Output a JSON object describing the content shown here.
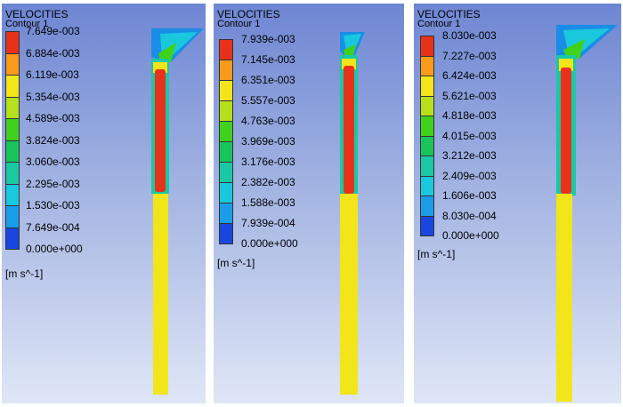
{
  "figure": {
    "panels": [
      {
        "title": "VELOCITIES",
        "subtitle": "Contour 1",
        "unit": "[m s^-1]",
        "labels": [
          "7.649e-003",
          "6.884e-003",
          "6.119e-003",
          "5.354e-003",
          "4.589e-003",
          "3.824e-003",
          "3.060e-003",
          "2.295e-003",
          "1.530e-003",
          "7.649e-004",
          "0.000e+000"
        ]
      },
      {
        "title": "VELOCITIES",
        "subtitle": "Contour 1",
        "unit": "[m s^-1]",
        "labels": [
          "7.939e-003",
          "7.145e-003",
          "6.351e-003",
          "5.557e-003",
          "4.763e-003",
          "3.969e-003",
          "3.176e-003",
          "2.382e-003",
          "1.588e-003",
          "7.939e-004",
          "0.000e+000"
        ]
      },
      {
        "title": "VELOCITIES",
        "subtitle": "Contour 1",
        "unit": "[m s^-1]",
        "labels": [
          "8.030e-003",
          "7.227e-003",
          "6.424e-003",
          "5.621e-003",
          "4.818e-003",
          "4.015e-003",
          "3.212e-003",
          "2.409e-003",
          "1.606e-003",
          "8.030e-004",
          "0.000e+000"
        ]
      }
    ],
    "colormap": [
      "#e8311a",
      "#f99a1a",
      "#f2e51a",
      "#b6e019",
      "#3fd11b",
      "#19c45a",
      "#1ac8a4",
      "#1ac8dd",
      "#1a9ce9",
      "#1a46e0"
    ]
  }
}
